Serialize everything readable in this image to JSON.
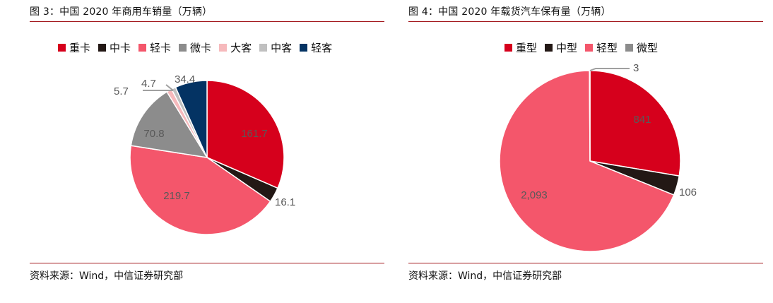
{
  "source_text": "资料来源：Wind，中信证券研究部",
  "colors": {
    "rule": "#a31a1f",
    "leader": "#a0a0a0"
  },
  "chart_data": [
    {
      "type": "pie",
      "title": "图 3：中国 2020 年商用车销量（万辆）",
      "legend_position": "top",
      "categories": [
        "重卡",
        "中卡",
        "轻卡",
        "微卡",
        "大客",
        "中客",
        "轻客"
      ],
      "values": [
        161.7,
        16.1,
        219.7,
        70.8,
        5.7,
        4.7,
        34.4
      ],
      "data_labels": [
        "161.7",
        "16.1",
        "219.7",
        "70.8",
        "5.7",
        "4.7",
        "34.4"
      ],
      "colors": [
        "#d6001c",
        "#231815",
        "#f4566b",
        "#8c8c8c",
        "#f6b9bc",
        "#c0c0c0",
        "#043363"
      ]
    },
    {
      "type": "pie",
      "title": "图 4：中国 2020 年载货汽车保有量（万辆）",
      "legend_position": "top",
      "categories": [
        "重型",
        "中型",
        "轻型",
        "微型"
      ],
      "values": [
        841,
        106,
        2093,
        3
      ],
      "data_labels": [
        "841",
        "106",
        "2,093",
        "3"
      ],
      "colors": [
        "#d6001c",
        "#231815",
        "#f4566b",
        "#8c8c8c"
      ]
    }
  ]
}
